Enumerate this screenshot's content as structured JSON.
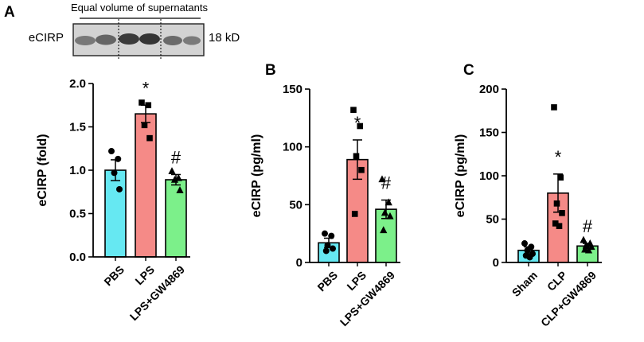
{
  "blot": {
    "caption": "Equal volume of supernatants",
    "protein": "eCIRP",
    "size": "18 kD"
  },
  "chart_data": [
    {
      "panel": "A",
      "type": "bar",
      "ylabel": "eCIRP (fold)",
      "ylim": [
        0,
        2
      ],
      "yticks": [
        "0.0",
        "0.5",
        "1.0",
        "1.5",
        "2.0"
      ],
      "ytick_values": [
        0,
        0.5,
        1.0,
        1.5,
        2.0
      ],
      "categories": [
        "PBS",
        "LPS",
        "LPS+GW4869"
      ],
      "values": [
        1.0,
        1.65,
        0.89
      ],
      "sem": [
        0.12,
        0.1,
        0.06
      ],
      "colors": [
        "#66e8f2",
        "#f58a87",
        "#7cf08a"
      ],
      "markers": [
        "circle",
        "square",
        "triangle"
      ],
      "points": [
        [
          1.22,
          1.13,
          0.97,
          0.78
        ],
        [
          1.78,
          1.75,
          1.52,
          1.37
        ],
        [
          0.99,
          0.91,
          0.89,
          0.77
        ]
      ],
      "significance": [
        "",
        "*",
        "#"
      ]
    },
    {
      "panel": "B",
      "type": "bar",
      "ylabel": "eCIRP (pg/ml)",
      "ylim": [
        0,
        150
      ],
      "yticks": [
        "0",
        "50",
        "100",
        "150"
      ],
      "ytick_values": [
        0,
        50,
        100,
        150
      ],
      "categories": [
        "PBS",
        "LPS",
        "LPS+GW4869"
      ],
      "values": [
        17,
        89,
        46
      ],
      "sem": [
        4,
        17,
        8
      ],
      "colors": [
        "#66e8f2",
        "#f58a87",
        "#7cf08a"
      ],
      "markers": [
        "circle",
        "square",
        "triangle"
      ],
      "points": [
        [
          25,
          23,
          15,
          12,
          10
        ],
        [
          132,
          118,
          92,
          80,
          42
        ],
        [
          72,
          52,
          43,
          40,
          28
        ]
      ],
      "significance": [
        "",
        "*",
        "#"
      ]
    },
    {
      "panel": "C",
      "type": "bar",
      "ylabel": "eCIRP (pg/ml)",
      "ylim": [
        0,
        200
      ],
      "yticks": [
        "0",
        "50",
        "100",
        "150",
        "200"
      ],
      "ytick_values": [
        0,
        50,
        100,
        150,
        200
      ],
      "categories": [
        "Sham",
        "CLP",
        "CLP+GW4869"
      ],
      "values": [
        14,
        80,
        19
      ],
      "sem": [
        4,
        22,
        3
      ],
      "colors": [
        "#66e8f2",
        "#f58a87",
        "#7cf08a"
      ],
      "markers": [
        "circle",
        "square",
        "triangle"
      ],
      "points": [
        [
          22,
          18,
          14,
          10,
          8,
          6
        ],
        [
          179,
          98,
          68,
          57,
          45,
          42
        ],
        [
          26,
          22,
          20,
          18,
          15,
          14
        ]
      ],
      "significance": [
        "",
        "*",
        "#"
      ]
    }
  ]
}
